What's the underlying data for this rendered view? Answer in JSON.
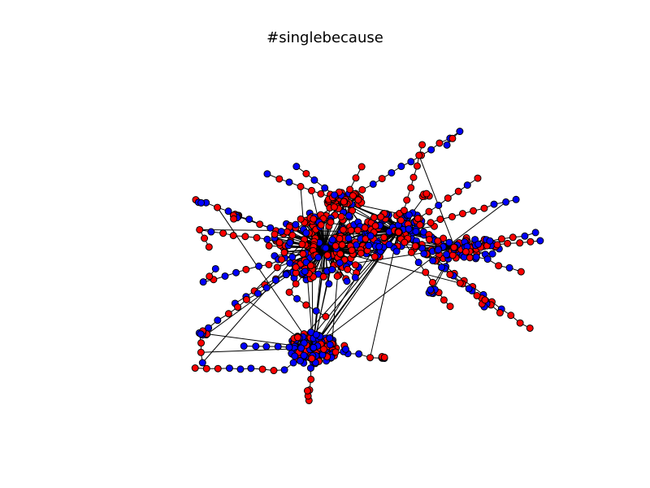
{
  "figure": {
    "title": "#singlebecause",
    "type": "network-graph",
    "node_colors": {
      "red": "#ff0000",
      "blue": "#0000ff",
      "outline": "#000000"
    },
    "edge_color": "#000000"
  }
}
